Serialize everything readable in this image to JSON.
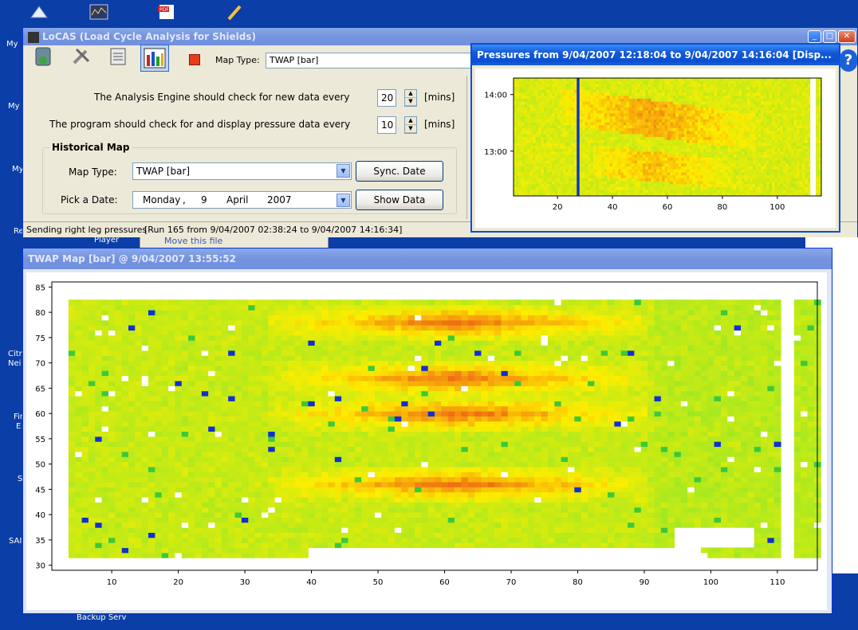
{
  "desktop": {
    "labels": [
      "My",
      "My",
      "My",
      "Re",
      "Citr",
      "Nei",
      "Fir",
      "E",
      "S",
      "SAI",
      "Backup Serv"
    ],
    "behind_window_text": "Move this file",
    "behind_window_text2": "Player"
  },
  "main_window": {
    "title": "LoCAS (Load Cycle Analysis for Shields)",
    "map_type_label": "Map Type:",
    "map_type_value": "TWAP [bar]",
    "analysis_label": "The Analysis Engine should check for new data every",
    "analysis_value": "20",
    "analysis_unit": "[mins]",
    "display_label": "The program should check for and display pressure data every",
    "display_value": "10",
    "display_unit": "[mins]",
    "historical_group": "Historical Map",
    "hist_map_type_label": "Map Type:",
    "hist_map_type_value": "TWAP [bar]",
    "sync_button": "Sync. Date",
    "pick_date_label": "Pick a Date:",
    "date_day": "Monday",
    "date_sep": ",",
    "date_num": "9",
    "date_month": "April",
    "date_year": "2007",
    "show_button": "Show Data",
    "status_text": "Sending right leg pressures",
    "status_run": "[Run 165 from 9/04/2007 02:38:24 to 9/04/2007 14:16:34]"
  },
  "pressure_window": {
    "title": "Pressures from 9/04/2007 12:18:04 to 9/04/2007 14:16:04 [Disp...",
    "help_icon": "?"
  },
  "twap_window": {
    "title": "TWAP Map [bar] @ 9/04/2007 13:55:52"
  },
  "colors": {
    "green": "#9be82b",
    "yellow": "#ffee00",
    "orange": "#f07a18",
    "blue": "#1030d0",
    "title_blue": "#0a4fd1"
  },
  "chart_data": [
    {
      "type": "heatmap",
      "title": "Pressures from 9/04/2007 12:18:04 to 9/04/2007 14:16:04 [Disp...",
      "x_ticks": [
        "20",
        "40",
        "60",
        "80",
        "100"
      ],
      "y_ticks": [
        "13:00",
        "14:00"
      ],
      "xlim": [
        4,
        116
      ],
      "grid": false,
      "colorscale": [
        "green",
        "yellow",
        "orange"
      ],
      "hot_band": "diagonal band from top-left to bottom-right, hottest near x 45-65"
    },
    {
      "type": "heatmap",
      "title": "TWAP Map [bar] @ 9/04/2007 13:55:52",
      "x_ticks": [
        "10",
        "20",
        "30",
        "40",
        "50",
        "60",
        "70",
        "80",
        "90",
        "100",
        "110"
      ],
      "y_ticks": [
        "30",
        "35",
        "40",
        "45",
        "50",
        "55",
        "60",
        "65",
        "70",
        "75",
        "80",
        "85"
      ],
      "xlim": [
        1,
        116
      ],
      "ylim": [
        29,
        86
      ],
      "data_extent_y": [
        32,
        82
      ],
      "grid": false,
      "colorscale": [
        "green",
        "yellow",
        "orange"
      ],
      "hot_bands_y": [
        46,
        60,
        67,
        78
      ]
    }
  ]
}
